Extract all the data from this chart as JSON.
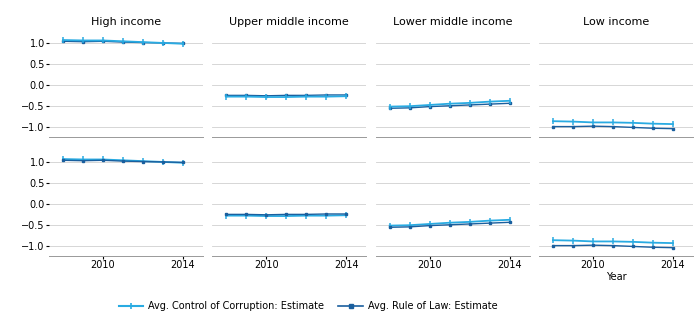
{
  "years": [
    2008,
    2009,
    2010,
    2011,
    2012,
    2013,
    2014
  ],
  "panels": [
    "High income",
    "Upper middle income",
    "Lower middle income",
    "Low income"
  ],
  "corruption": {
    "High income": [
      1.08,
      1.07,
      1.07,
      1.05,
      1.03,
      1.01,
      0.99
    ],
    "Upper middle income": [
      -0.28,
      -0.28,
      -0.29,
      -0.29,
      -0.28,
      -0.28,
      -0.27
    ],
    "Lower middle income": [
      -0.52,
      -0.51,
      -0.48,
      -0.45,
      -0.43,
      -0.4,
      -0.38
    ],
    "Low income": [
      -0.87,
      -0.88,
      -0.9,
      -0.9,
      -0.91,
      -0.93,
      -0.94
    ]
  },
  "rule_of_law": {
    "High income": [
      1.05,
      1.04,
      1.05,
      1.03,
      1.02,
      1.01,
      1.0
    ],
    "Upper middle income": [
      -0.25,
      -0.25,
      -0.26,
      -0.25,
      -0.25,
      -0.24,
      -0.24
    ],
    "Lower middle income": [
      -0.56,
      -0.55,
      -0.52,
      -0.5,
      -0.48,
      -0.46,
      -0.44
    ],
    "Low income": [
      -1.0,
      -1.0,
      -0.99,
      -1.0,
      -1.02,
      -1.04,
      -1.05
    ]
  },
  "ylim": [
    -1.25,
    1.35
  ],
  "yticks": [
    -1.0,
    -0.5,
    0.0,
    0.5,
    1.0
  ],
  "xticks": [
    2010,
    2014
  ],
  "corruption_color": "#29ABE2",
  "rule_of_law_color": "#1A5F9E",
  "grid_color": "#D0D0D0",
  "bg_color": "#FFFFFF",
  "legend_corruption": "Avg. Control of Corruption: Estimate",
  "legend_rule": "Avg. Rule of Law: Estimate",
  "tick_fontsize": 7,
  "title_fontsize": 8,
  "xlabel_fontsize": 7
}
